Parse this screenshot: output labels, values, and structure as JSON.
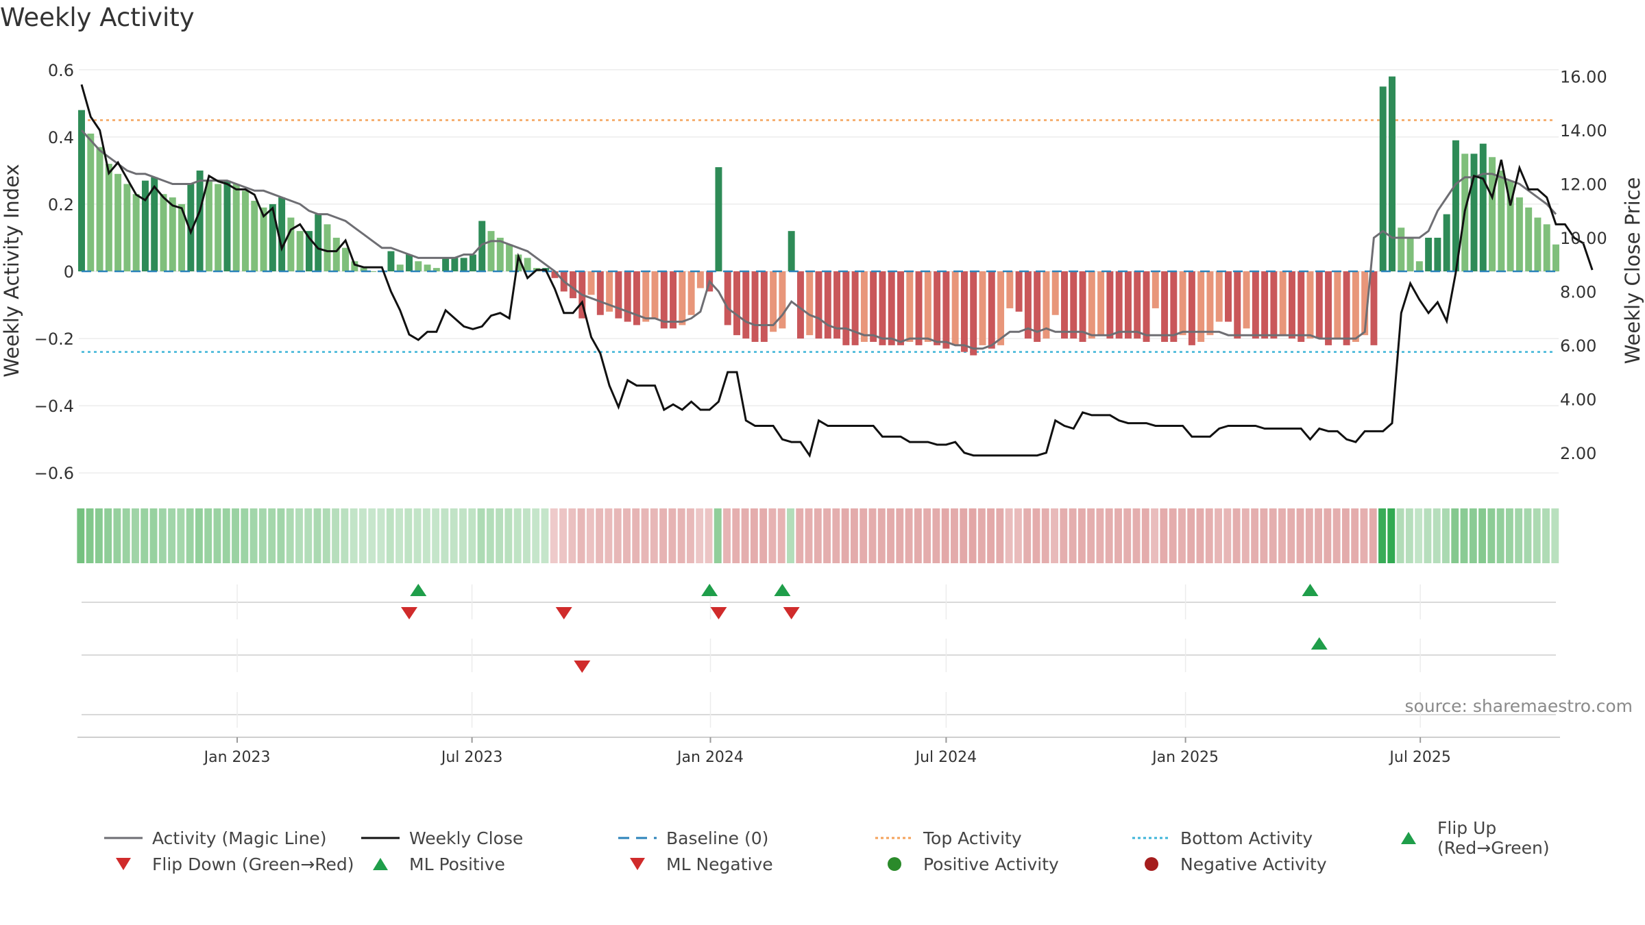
{
  "chart_data": {
    "type": "bar",
    "title": "Weekly Activity",
    "ylabel": "Weekly Activity Index",
    "y2label": "Weekly Close Price",
    "ylim": [
      -0.62,
      0.62
    ],
    "y2lim": [
      1.0,
      16.5
    ],
    "yticks": [
      -0.6,
      -0.4,
      -0.2,
      0,
      0.2,
      0.4,
      0.6
    ],
    "ytick_labels": [
      "−0.6",
      "−0.4",
      "−0.2",
      "0",
      "0.2",
      "0.4",
      "0.6"
    ],
    "y2ticks": [
      2,
      4,
      6,
      8,
      10,
      12,
      14,
      16
    ],
    "y2tick_labels": [
      "2.00",
      "4.00",
      "6.00",
      "8.00",
      "10.00",
      "12.00",
      "14.00",
      "16.00"
    ],
    "x_start": "2022-09-05",
    "weeks": 157,
    "xticks": [
      {
        "label": "Jan 2023",
        "week": 17.1
      },
      {
        "label": "Jul 2023",
        "week": 42.9
      },
      {
        "label": "Jan 2024",
        "week": 69.1
      },
      {
        "label": "Jul 2024",
        "week": 95.0
      },
      {
        "label": "Jan 2025",
        "week": 121.3
      },
      {
        "label": "Jul 2025",
        "week": 147.1
      }
    ],
    "top_activity": 0.45,
    "bottom_activity": -0.24,
    "baseline": 0,
    "activity": [
      0.48,
      0.41,
      0.37,
      0.32,
      0.29,
      0.26,
      0.23,
      0.27,
      0.28,
      0.23,
      0.22,
      0.2,
      0.26,
      0.3,
      0.27,
      0.26,
      0.27,
      0.26,
      0.24,
      0.21,
      0.19,
      0.2,
      0.22,
      0.16,
      0.12,
      0.12,
      0.17,
      0.14,
      0.1,
      0.07,
      0.03,
      0.01,
      0.0,
      0.0,
      0.06,
      0.02,
      0.05,
      0.03,
      0.02,
      0.01,
      0.04,
      0.04,
      0.04,
      0.05,
      0.15,
      0.12,
      0.1,
      0.08,
      0.05,
      0.04,
      0.01,
      0.01,
      -0.02,
      -0.06,
      -0.08,
      -0.14,
      -0.07,
      -0.13,
      -0.12,
      -0.14,
      -0.15,
      -0.16,
      -0.15,
      -0.14,
      -0.17,
      -0.17,
      -0.16,
      -0.13,
      -0.05,
      -0.06,
      0.31,
      -0.16,
      -0.19,
      -0.2,
      -0.21,
      -0.21,
      -0.18,
      -0.17,
      0.12,
      -0.2,
      -0.19,
      -0.2,
      -0.2,
      -0.2,
      -0.22,
      -0.22,
      -0.21,
      -0.21,
      -0.22,
      -0.22,
      -0.22,
      -0.21,
      -0.22,
      -0.21,
      -0.22,
      -0.23,
      -0.22,
      -0.24,
      -0.25,
      -0.22,
      -0.23,
      -0.22,
      -0.11,
      -0.12,
      -0.2,
      -0.21,
      -0.2,
      -0.13,
      -0.2,
      -0.2,
      -0.21,
      -0.2,
      -0.19,
      -0.2,
      -0.2,
      -0.2,
      -0.2,
      -0.21,
      -0.11,
      -0.21,
      -0.21,
      -0.19,
      -0.22,
      -0.21,
      -0.19,
      -0.15,
      -0.15,
      -0.2,
      -0.17,
      -0.2,
      -0.2,
      -0.2,
      -0.19,
      -0.2,
      -0.21,
      -0.2,
      -0.2,
      -0.22,
      -0.2,
      -0.22,
      -0.21,
      -0.19,
      -0.22,
      0.55,
      0.58,
      0.13,
      0.1,
      0.03,
      0.1,
      0.1,
      0.17,
      0.39,
      0.35,
      0.35,
      0.38,
      0.34,
      0.3,
      0.27,
      0.22,
      0.19,
      0.16,
      0.14,
      0.08
    ],
    "magic_line": [
      0.42,
      0.39,
      0.36,
      0.34,
      0.32,
      0.3,
      0.29,
      0.29,
      0.28,
      0.27,
      0.26,
      0.26,
      0.26,
      0.27,
      0.27,
      0.27,
      0.27,
      0.26,
      0.25,
      0.24,
      0.24,
      0.23,
      0.22,
      0.21,
      0.2,
      0.18,
      0.17,
      0.17,
      0.16,
      0.15,
      0.13,
      0.11,
      0.09,
      0.07,
      0.07,
      0.06,
      0.05,
      0.04,
      0.04,
      0.04,
      0.04,
      0.04,
      0.05,
      0.05,
      0.08,
      0.09,
      0.09,
      0.08,
      0.07,
      0.06,
      0.04,
      0.02,
      0.0,
      -0.03,
      -0.05,
      -0.07,
      -0.08,
      -0.09,
      -0.1,
      -0.11,
      -0.12,
      -0.13,
      -0.14,
      -0.14,
      -0.15,
      -0.15,
      -0.15,
      -0.14,
      -0.12,
      -0.03,
      -0.06,
      -0.11,
      -0.13,
      -0.15,
      -0.16,
      -0.16,
      -0.16,
      -0.13,
      -0.09,
      -0.11,
      -0.13,
      -0.14,
      -0.16,
      -0.17,
      -0.17,
      -0.18,
      -0.19,
      -0.19,
      -0.2,
      -0.2,
      -0.21,
      -0.2,
      -0.2,
      -0.2,
      -0.21,
      -0.21,
      -0.22,
      -0.22,
      -0.23,
      -0.23,
      -0.22,
      -0.2,
      -0.18,
      -0.18,
      -0.17,
      -0.18,
      -0.17,
      -0.18,
      -0.18,
      -0.18,
      -0.18,
      -0.19,
      -0.19,
      -0.19,
      -0.18,
      -0.18,
      -0.18,
      -0.19,
      -0.19,
      -0.19,
      -0.19,
      -0.18,
      -0.18,
      -0.18,
      -0.18,
      -0.18,
      -0.19,
      -0.19,
      -0.19,
      -0.19,
      -0.19,
      -0.19,
      -0.19,
      -0.19,
      -0.19,
      -0.19,
      -0.2,
      -0.2,
      -0.2,
      -0.2,
      -0.2,
      -0.18,
      0.1,
      0.12,
      0.1,
      0.1,
      0.1,
      0.1,
      0.12,
      0.18,
      0.22,
      0.26,
      0.28,
      0.28,
      0.29,
      0.29,
      0.28,
      0.27,
      0.26,
      0.24,
      0.22,
      0.2,
      0.17
    ],
    "weekly_close": [
      15.7,
      14.5,
      14.0,
      12.4,
      12.8,
      12.2,
      11.6,
      11.4,
      11.9,
      11.5,
      11.2,
      11.1,
      10.2,
      11.0,
      12.3,
      12.1,
      12.0,
      11.8,
      11.8,
      11.6,
      10.8,
      11.1,
      9.6,
      10.3,
      10.5,
      10.0,
      9.6,
      9.5,
      9.5,
      9.9,
      9.0,
      8.9,
      8.9,
      8.9,
      8.0,
      7.3,
      6.4,
      6.2,
      6.5,
      6.5,
      7.3,
      7.0,
      6.7,
      6.6,
      6.7,
      7.1,
      7.2,
      7.0,
      9.3,
      8.5,
      8.8,
      8.8,
      8.1,
      7.2,
      7.2,
      7.6,
      6.3,
      5.7,
      4.5,
      3.7,
      4.7,
      4.5,
      4.5,
      4.5,
      3.6,
      3.8,
      3.6,
      3.9,
      3.6,
      3.6,
      3.9,
      5.0,
      5.0,
      3.2,
      3.0,
      3.0,
      3.0,
      2.5,
      2.4,
      2.4,
      1.9,
      3.2,
      3.0,
      3.0,
      3.0,
      3.0,
      3.0,
      3.0,
      2.6,
      2.6,
      2.6,
      2.4,
      2.4,
      2.4,
      2.3,
      2.3,
      2.4,
      2.0,
      1.9,
      1.9,
      1.9,
      1.9,
      1.9,
      1.9,
      1.9,
      1.9,
      2.0,
      3.2,
      3.0,
      2.9,
      3.5,
      3.4,
      3.4,
      3.4,
      3.2,
      3.1,
      3.1,
      3.1,
      3.0,
      3.0,
      3.0,
      3.0,
      2.6,
      2.6,
      2.6,
      2.9,
      3.0,
      3.0,
      3.0,
      3.0,
      2.9,
      2.9,
      2.9,
      2.9,
      2.9,
      2.5,
      2.9,
      2.8,
      2.8,
      2.5,
      2.4,
      2.8,
      2.8,
      2.8,
      3.1,
      7.2,
      8.3,
      7.7,
      7.2,
      7.6,
      6.9,
      8.7,
      11.0,
      12.3,
      12.2,
      11.5,
      12.9,
      11.2,
      12.6,
      11.8,
      11.8,
      11.5,
      10.5,
      10.5,
      10.0,
      9.8,
      8.8
    ],
    "flip_up_weeks": [
      37,
      69,
      77,
      135
    ],
    "flip_down_weeks": [
      36,
      53,
      70,
      78
    ],
    "ml_positive_weeks": [
      136
    ],
    "ml_negative_weeks": [
      55
    ],
    "positive_activity_weeks": [],
    "negative_activity_weeks": [],
    "colors": {
      "strong_green": "#2e8b57",
      "light_green": "#7fbf7b",
      "strong_red": "#c9575a",
      "light_red": "#e8967a",
      "magic_line": "#6e6e73",
      "close_line": "#111111",
      "baseline": "#2b83ba",
      "top_activity": "#f4a259",
      "bottom_activity": "#3cb4d8",
      "marker_green": "#1f9e4a",
      "marker_red": "#d02b2b",
      "dot_green": "#2a8a2a",
      "dot_red": "#a51d1d"
    },
    "source": "source: sharemaestro.com"
  },
  "legend": [
    {
      "label": "Activity (Magic Line)",
      "symbol": "line-gray"
    },
    {
      "label": "Weekly Close",
      "symbol": "line-black"
    },
    {
      "label": "Baseline (0)",
      "symbol": "dash-blue"
    },
    {
      "label": "Top Activity",
      "symbol": "dot-orange"
    },
    {
      "label": "Bottom Activity",
      "symbol": "dot-cyan"
    },
    {
      "label": "Flip Up (Red→Green)",
      "symbol": "triangle-up-green"
    },
    {
      "label": "Flip Down (Green→Red)",
      "symbol": "triangle-down-red"
    },
    {
      "label": "ML Positive",
      "symbol": "triangle-up-green"
    },
    {
      "label": "ML Negative",
      "symbol": "triangle-down-red"
    },
    {
      "label": "Positive Activity",
      "symbol": "circle-green"
    },
    {
      "label": "Negative Activity",
      "symbol": "circle-red"
    }
  ]
}
